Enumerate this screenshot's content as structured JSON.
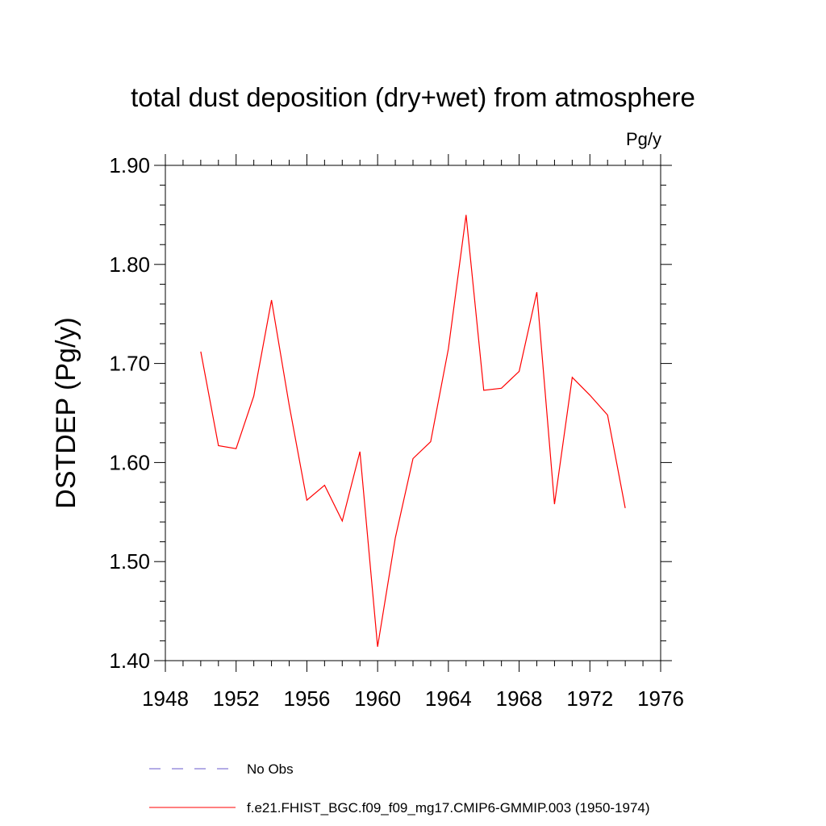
{
  "chart_data": {
    "type": "line",
    "title": "total dust deposition (dry+wet) from atmosphere",
    "units_label": "Pg/y",
    "ylabel": "DSTDEP  (Pg/y)",
    "xlabel": "",
    "xlim": [
      1948,
      1976
    ],
    "ylim": [
      1.4,
      1.9
    ],
    "x_ticks": [
      1948,
      1952,
      1956,
      1960,
      1964,
      1968,
      1972,
      1976
    ],
    "x_tick_labels": [
      "1948",
      "1952",
      "1956",
      "1960",
      "1964",
      "1968",
      "1972",
      "1976"
    ],
    "y_ticks": [
      1.4,
      1.5,
      1.6,
      1.7,
      1.8,
      1.9
    ],
    "y_tick_labels": [
      "1.40",
      "1.50",
      "1.60",
      "1.70",
      "1.80",
      "1.90"
    ],
    "grid": false,
    "legend_position": "bottom",
    "series": [
      {
        "name": "No Obs",
        "color": "#6a5acd",
        "style": "dashed",
        "x": [],
        "values": []
      },
      {
        "name": "f.e21.FHIST_BGC.f09_f09_mg17.CMIP6-GMMIP.003 (1950-1974)",
        "color": "#ff0000",
        "style": "solid",
        "x": [
          1950,
          1951,
          1952,
          1953,
          1954,
          1955,
          1956,
          1957,
          1958,
          1959,
          1960,
          1961,
          1962,
          1963,
          1964,
          1965,
          1966,
          1967,
          1968,
          1969,
          1970,
          1971,
          1972,
          1973,
          1974
        ],
        "values": [
          1.712,
          1.617,
          1.614,
          1.667,
          1.764,
          1.658,
          1.562,
          1.577,
          1.541,
          1.611,
          1.414,
          1.524,
          1.604,
          1.621,
          1.715,
          1.85,
          1.673,
          1.675,
          1.692,
          1.772,
          1.558,
          1.686,
          1.668,
          1.648,
          1.554
        ]
      }
    ]
  }
}
